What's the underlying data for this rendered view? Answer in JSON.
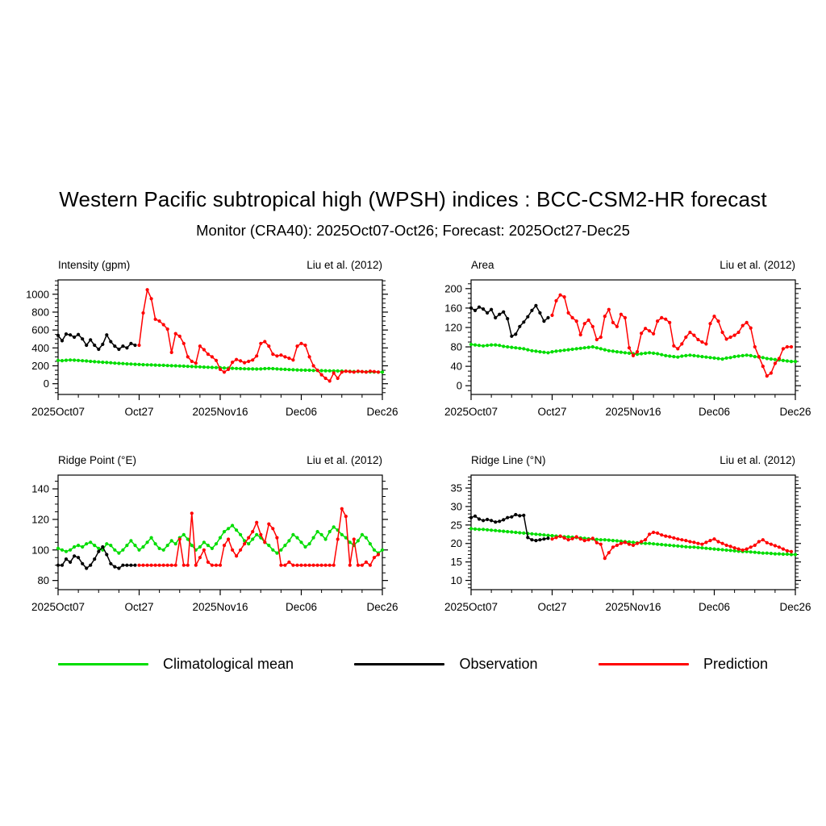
{
  "page": {
    "title": "Western Pacific subtropical high (WPSH) indices : BCC-CSM2-HR forecast",
    "subtitle": "Monitor (CRA40): 2025Oct07-Oct26; Forecast: 2025Oct27-Dec25"
  },
  "legend": [
    {
      "label": "Climatological mean",
      "color": "#00dd00"
    },
    {
      "label": "Observation",
      "color": "#000000"
    },
    {
      "label": "Prediction",
      "color": "#ff0000"
    }
  ],
  "chart_data": [
    {
      "id": "intensity",
      "type": "line",
      "title": "Intensity (gpm)",
      "annotation": "Liu et al. (2012)",
      "xlim": [
        0,
        80
      ],
      "x_ticks": [
        0,
        20,
        40,
        60,
        80
      ],
      "x_tick_labels": [
        "2025Oct07",
        "Oct27",
        "2025Nov16",
        "Dec06",
        "Dec26"
      ],
      "x_minor_step": 5,
      "ylim": [
        -120,
        1160
      ],
      "y_ticks": [
        0,
        200,
        400,
        600,
        800,
        1000
      ],
      "y_minor_step": 50,
      "series": [
        {
          "name": "Climatological mean",
          "color": "#00dd00",
          "x_start": 0,
          "values": [
            260,
            258,
            262,
            265,
            263,
            260,
            257,
            254,
            250,
            246,
            243,
            240,
            237,
            234,
            230,
            227,
            225,
            222,
            220,
            217,
            215,
            213,
            211,
            210,
            208,
            206,
            205,
            203,
            201,
            200,
            198,
            196,
            194,
            192,
            190,
            188,
            186,
            184,
            182,
            180,
            178,
            176,
            174,
            172,
            170,
            168,
            167,
            166,
            165,
            164,
            165,
            168,
            170,
            168,
            165,
            162,
            160,
            158,
            156,
            154,
            152,
            151,
            150,
            148,
            147,
            146,
            145,
            144,
            143,
            142,
            141,
            140,
            138,
            136,
            135,
            134,
            133,
            132,
            131,
            130,
            130
          ]
        },
        {
          "name": "Observation",
          "color": "#000000",
          "x_start": 0,
          "values": [
            540,
            480,
            555,
            545,
            520,
            550,
            500,
            430,
            490,
            430,
            385,
            440,
            545,
            470,
            420,
            385,
            420,
            400,
            450,
            430
          ]
        },
        {
          "name": "Prediction",
          "color": "#ff0000",
          "x_start": 20,
          "values": [
            430,
            790,
            1050,
            950,
            720,
            700,
            660,
            610,
            350,
            560,
            530,
            450,
            300,
            250,
            230,
            420,
            380,
            330,
            300,
            260,
            160,
            130,
            160,
            240,
            270,
            255,
            235,
            250,
            265,
            310,
            450,
            470,
            420,
            330,
            310,
            320,
            300,
            285,
            265,
            420,
            450,
            430,
            300,
            200,
            150,
            100,
            60,
            30,
            120,
            60,
            130,
            140,
            135,
            130,
            140,
            135,
            130,
            140,
            135,
            130
          ]
        }
      ]
    },
    {
      "id": "area",
      "type": "line",
      "title": "Area",
      "annotation": "Liu et al. (2012)",
      "xlim": [
        0,
        80
      ],
      "x_ticks": [
        0,
        20,
        40,
        60,
        80
      ],
      "x_tick_labels": [
        "2025Oct07",
        "Oct27",
        "2025Nov16",
        "Dec06",
        "Dec26"
      ],
      "x_minor_step": 5,
      "ylim": [
        -18,
        218
      ],
      "y_ticks": [
        0,
        40,
        80,
        120,
        160,
        200
      ],
      "y_minor_step": 10,
      "series": [
        {
          "name": "Climatological mean",
          "color": "#00dd00",
          "x_start": 0,
          "values": [
            85,
            84,
            83,
            82,
            83,
            84,
            84,
            83,
            81,
            80,
            79,
            78,
            77,
            76,
            74,
            72,
            71,
            70,
            69,
            68,
            70,
            71,
            72,
            73,
            74,
            75,
            76,
            77,
            78,
            79,
            80,
            78,
            76,
            74,
            72,
            71,
            70,
            69,
            68,
            67,
            66,
            65,
            66,
            67,
            68,
            67,
            66,
            64,
            62,
            61,
            60,
            59,
            61,
            62,
            63,
            62,
            61,
            60,
            59,
            58,
            57,
            56,
            55,
            57,
            58,
            60,
            61,
            62,
            63,
            62,
            60,
            59,
            58,
            56,
            55,
            54,
            53,
            52,
            51,
            50,
            50
          ]
        },
        {
          "name": "Observation",
          "color": "#000000",
          "x_start": 0,
          "values": [
            160,
            155,
            162,
            158,
            150,
            157,
            140,
            147,
            152,
            138,
            102,
            106,
            122,
            131,
            142,
            155,
            165,
            150,
            133,
            140
          ]
        },
        {
          "name": "Prediction",
          "color": "#ff0000",
          "x_start": 20,
          "values": [
            145,
            175,
            187,
            183,
            150,
            140,
            133,
            105,
            128,
            135,
            122,
            95,
            100,
            143,
            157,
            130,
            122,
            147,
            140,
            78,
            62,
            70,
            108,
            118,
            113,
            107,
            133,
            140,
            137,
            130,
            82,
            76,
            86,
            100,
            110,
            104,
            95,
            90,
            86,
            128,
            143,
            133,
            110,
            96,
            100,
            104,
            110,
            124,
            130,
            119,
            80,
            60,
            40,
            20,
            26,
            46,
            56,
            76,
            80,
            80
          ]
        }
      ]
    },
    {
      "id": "ridge-point",
      "type": "line",
      "title": "Ridge Point (°E)",
      "annotation": "Liu et al. (2012)",
      "xlim": [
        0,
        80
      ],
      "x_ticks": [
        0,
        20,
        40,
        60,
        80
      ],
      "x_tick_labels": [
        "2025Oct07",
        "Oct27",
        "2025Nov16",
        "Dec06",
        "Dec26"
      ],
      "x_minor_step": 5,
      "ylim": [
        74,
        149
      ],
      "y_ticks": [
        80,
        100,
        120,
        140
      ],
      "y_minor_step": 5,
      "series": [
        {
          "name": "Climatological mean",
          "color": "#00dd00",
          "x_start": 0,
          "values": [
            101,
            100,
            99,
            100,
            102,
            103,
            102,
            104,
            105,
            103,
            101,
            100,
            104,
            103,
            100,
            98,
            100,
            103,
            106,
            103,
            100,
            102,
            105,
            108,
            104,
            101,
            100,
            103,
            106,
            104,
            108,
            110,
            107,
            103,
            100,
            102,
            105,
            103,
            101,
            104,
            108,
            112,
            114,
            116,
            113,
            110,
            106,
            104,
            107,
            110,
            108,
            105,
            103,
            100,
            98,
            100,
            103,
            106,
            110,
            108,
            105,
            102,
            104,
            108,
            112,
            110,
            107,
            112,
            115,
            113,
            110,
            108,
            105,
            103,
            106,
            110,
            108,
            104,
            100,
            98,
            100
          ]
        },
        {
          "name": "Observation",
          "color": "#000000",
          "x_start": 0,
          "values": [
            90,
            90,
            94,
            92,
            96,
            95,
            91,
            88,
            90,
            94,
            99,
            102,
            97,
            91,
            89,
            88,
            90,
            90,
            90,
            90
          ]
        },
        {
          "name": "Prediction",
          "color": "#ff0000",
          "x_start": 20,
          "values": [
            90,
            90,
            90,
            90,
            90,
            90,
            90,
            90,
            90,
            90,
            107,
            90,
            90,
            124,
            90,
            95,
            100,
            92,
            90,
            90,
            90,
            103,
            107,
            100,
            96,
            100,
            104,
            108,
            112,
            118,
            110,
            105,
            117,
            114,
            108,
            90,
            90,
            92,
            90,
            90,
            90,
            90,
            90,
            90,
            90,
            90,
            90,
            90,
            90,
            107,
            127,
            122,
            90,
            107,
            90,
            90,
            92,
            90,
            95,
            97
          ]
        }
      ]
    },
    {
      "id": "ridge-line",
      "type": "line",
      "title": "Ridge Line (°N)",
      "annotation": "Liu et al. (2012)",
      "xlim": [
        0,
        80
      ],
      "x_ticks": [
        0,
        20,
        40,
        60,
        80
      ],
      "x_tick_labels": [
        "2025Oct07",
        "Oct27",
        "2025Nov16",
        "Dec06",
        "Dec26"
      ],
      "x_minor_step": 5,
      "ylim": [
        7.5,
        38.5
      ],
      "y_ticks": [
        10,
        15,
        20,
        25,
        30,
        35
      ],
      "y_minor_step": 1,
      "series": [
        {
          "name": "Climatological mean",
          "color": "#00dd00",
          "x_start": 0,
          "values": [
            24,
            23.9,
            23.8,
            23.8,
            23.7,
            23.6,
            23.5,
            23.4,
            23.3,
            23.2,
            23.1,
            23,
            22.9,
            22.8,
            22.7,
            22.6,
            22.5,
            22.4,
            22.3,
            22.2,
            22.1,
            22,
            21.9,
            21.8,
            21.8,
            21.7,
            21.6,
            21.5,
            21.4,
            21.3,
            21.2,
            21.1,
            21,
            21,
            20.9,
            20.8,
            20.7,
            20.6,
            20.5,
            20.4,
            20.3,
            20.2,
            20.1,
            20,
            20,
            19.9,
            19.8,
            19.7,
            19.6,
            19.5,
            19.4,
            19.3,
            19.2,
            19.1,
            19,
            19,
            18.9,
            18.8,
            18.7,
            18.6,
            18.5,
            18.4,
            18.3,
            18.2,
            18.1,
            18,
            17.9,
            17.8,
            17.8,
            17.7,
            17.6,
            17.5,
            17.4,
            17.4,
            17.3,
            17.2,
            17.2,
            17.1,
            17.1,
            17,
            17
          ]
        },
        {
          "name": "Observation",
          "color": "#000000",
          "x_start": 0,
          "values": [
            27,
            27.4,
            26.6,
            26.2,
            26.5,
            26.2,
            25.8,
            26,
            26.4,
            27,
            27.2,
            27.8,
            27.5,
            27.6,
            21.6,
            21,
            20.8,
            21,
            21.2,
            21.4
          ]
        },
        {
          "name": "Prediction",
          "color": "#ff0000",
          "x_start": 20,
          "values": [
            21.2,
            21.6,
            22,
            21.5,
            21,
            21.3,
            21.8,
            21.2,
            20.8,
            21,
            21.4,
            20.2,
            19.8,
            16,
            17.5,
            19,
            19.5,
            20,
            20.3,
            19.8,
            19.5,
            20,
            20.5,
            21,
            22.5,
            23,
            22.8,
            22.3,
            22,
            21.8,
            21.5,
            21.2,
            21,
            20.8,
            20.5,
            20.3,
            20,
            19.8,
            20.3,
            20.8,
            21.2,
            20.5,
            20,
            19.5,
            19.2,
            18.8,
            18.5,
            18.2,
            18.5,
            19,
            19.5,
            20.5,
            21,
            20.2,
            19.8,
            19.4,
            19,
            18.5,
            18,
            17.8
          ]
        }
      ]
    }
  ]
}
